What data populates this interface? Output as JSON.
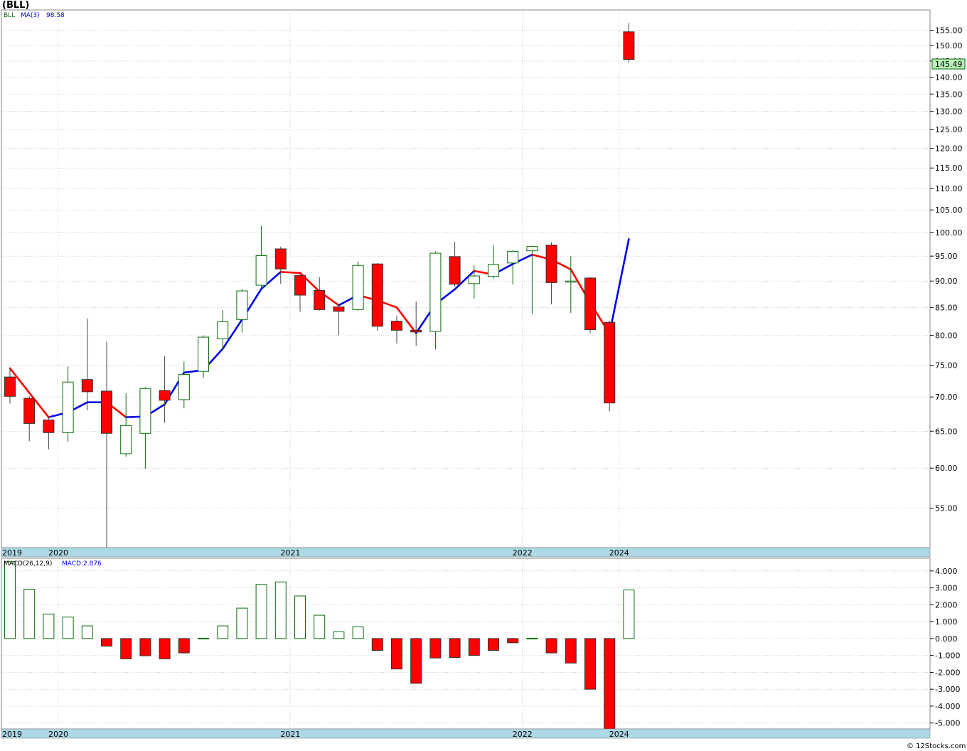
{
  "title": "(BLL)",
  "credit": "© 12Stocks.com",
  "colors": {
    "up_stroke": "#0a6b0a",
    "down_fill": "#ff0000",
    "ma_up": "#0000ee",
    "ma_down": "#ff0000",
    "axis_strip": "#add8e6",
    "grid": "#b0b0b0",
    "price_tag_bg": "#b8f0b8",
    "macd_up": "#0a6b0a",
    "macd_down": "#ff0000"
  },
  "legend": {
    "ticker": "BLL",
    "ma_label": "MA(3)",
    "ma_value": "98.58",
    "macd_label": "MACD(26,12,9)",
    "macd_value": "MACD:2.876"
  },
  "last_price": "145.49",
  "chart_data": [
    {
      "type": "candlestick",
      "name": "price",
      "scale": "log",
      "ylim": [
        50.5,
        162
      ],
      "yticks": [
        55,
        60,
        65,
        70,
        75,
        80,
        85,
        90,
        95,
        100,
        105,
        110,
        115,
        120,
        125,
        130,
        135,
        140,
        145,
        150,
        155
      ],
      "ytick_labels": [
        "55.00",
        "60.00",
        "65.00",
        "70.00",
        "75.00",
        "80.00",
        "85.00",
        "90.00",
        "95.00",
        "100.00",
        "105.00",
        "110.00",
        "115.00",
        "120.00",
        "125.00",
        "130.00",
        "135.00",
        "140.00",
        "145.00",
        "150.00",
        "155.00"
      ],
      "x_labels": [
        {
          "label": "2019",
          "index": 0
        },
        {
          "label": "2020",
          "index": 3
        },
        {
          "label": "2021",
          "index": 15
        },
        {
          "label": "2022",
          "index": 27
        },
        {
          "label": "2024",
          "index": 32
        }
      ],
      "candles": [
        {
          "o": 73.1,
          "h": 74.5,
          "l": 69.0,
          "c": 70.1
        },
        {
          "o": 69.8,
          "h": 70.1,
          "l": 63.6,
          "c": 66.1
        },
        {
          "o": 66.6,
          "h": 67.0,
          "l": 62.5,
          "c": 64.8
        },
        {
          "o": 64.8,
          "h": 74.8,
          "l": 63.5,
          "c": 72.3
        },
        {
          "o": 72.7,
          "h": 83.0,
          "l": 68.0,
          "c": 70.8
        },
        {
          "o": 70.9,
          "h": 78.9,
          "l": 50.5,
          "c": 64.7
        },
        {
          "o": 61.9,
          "h": 70.6,
          "l": 61.5,
          "c": 65.8
        },
        {
          "o": 64.7,
          "h": 71.5,
          "l": 59.9,
          "c": 71.3
        },
        {
          "o": 71.0,
          "h": 76.5,
          "l": 66.2,
          "c": 69.5
        },
        {
          "o": 69.6,
          "h": 75.6,
          "l": 68.3,
          "c": 73.5
        },
        {
          "o": 74.0,
          "h": 80.0,
          "l": 73.0,
          "c": 79.7
        },
        {
          "o": 79.4,
          "h": 84.5,
          "l": 77.5,
          "c": 82.4
        },
        {
          "o": 82.8,
          "h": 88.5,
          "l": 80.5,
          "c": 88.1
        },
        {
          "o": 89.2,
          "h": 101.5,
          "l": 88.6,
          "c": 95.1
        },
        {
          "o": 96.5,
          "h": 97.0,
          "l": 89.5,
          "c": 92.4
        },
        {
          "o": 91.1,
          "h": 91.3,
          "l": 84.2,
          "c": 87.3
        },
        {
          "o": 88.2,
          "h": 90.8,
          "l": 84.4,
          "c": 84.6
        },
        {
          "o": 85.1,
          "h": 85.7,
          "l": 80.0,
          "c": 84.3
        },
        {
          "o": 84.6,
          "h": 93.9,
          "l": 84.4,
          "c": 93.1
        },
        {
          "o": 93.4,
          "h": 93.6,
          "l": 80.8,
          "c": 81.6
        },
        {
          "o": 82.5,
          "h": 83.5,
          "l": 78.6,
          "c": 80.9
        },
        {
          "o": 80.9,
          "h": 86.1,
          "l": 78.2,
          "c": 80.6
        },
        {
          "o": 80.7,
          "h": 96.0,
          "l": 77.6,
          "c": 95.6
        },
        {
          "o": 94.9,
          "h": 98.0,
          "l": 88.9,
          "c": 89.4
        },
        {
          "o": 89.5,
          "h": 93.1,
          "l": 86.6,
          "c": 91.0
        },
        {
          "o": 90.9,
          "h": 97.3,
          "l": 90.5,
          "c": 93.3
        },
        {
          "o": 93.6,
          "h": 96.2,
          "l": 89.3,
          "c": 96.0
        },
        {
          "o": 96.1,
          "h": 97.2,
          "l": 83.8,
          "c": 97.0
        },
        {
          "o": 97.3,
          "h": 97.9,
          "l": 85.6,
          "c": 89.7
        },
        {
          "o": 90.0,
          "h": 95.0,
          "l": 84.0,
          "c": 90.0
        },
        {
          "o": 90.6,
          "h": 90.8,
          "l": 80.4,
          "c": 81.0
        },
        {
          "o": 82.3,
          "h": 82.6,
          "l": 67.9,
          "c": 69.1
        },
        {
          "o": 154.5,
          "h": 157.5,
          "l": 144.5,
          "c": 145.5
        }
      ],
      "ma3": [
        74.5,
        null,
        67.0,
        67.7,
        69.2,
        69.2,
        67.0,
        67.1,
        68.9,
        73.8,
        74.2,
        77.7,
        82.8,
        88.5,
        91.8,
        91.6,
        88.0,
        85.4,
        87.3,
        86.3,
        85.0,
        80.4,
        85.6,
        88.4,
        92.0,
        91.3,
        93.4,
        95.3,
        94.3,
        92.3,
        85.9,
        80.3,
        98.58
      ]
    },
    {
      "type": "bar",
      "name": "MACD(26,12,9)",
      "ylim": [
        -5.35,
        4.75
      ],
      "yticks": [
        -5,
        -4,
        -3,
        -2,
        -1,
        0,
        1,
        2,
        3,
        4
      ],
      "ytick_labels": [
        "-5.000",
        "-4.000",
        "-3.000",
        "-2.000",
        "-1.000",
        "0.000",
        "1.000",
        "2.000",
        "3.000",
        "4.000"
      ],
      "values": [
        4.55,
        2.92,
        1.45,
        1.27,
        0.75,
        -0.45,
        -1.2,
        -1.02,
        -1.2,
        -0.85,
        0.02,
        0.75,
        1.8,
        3.2,
        3.35,
        2.52,
        1.38,
        0.4,
        0.7,
        -0.7,
        -1.8,
        -2.65,
        -1.15,
        -1.12,
        -1.0,
        -0.7,
        -0.25,
        0.02,
        -0.85,
        -1.45,
        -3.0,
        -5.5,
        2.876
      ]
    }
  ]
}
